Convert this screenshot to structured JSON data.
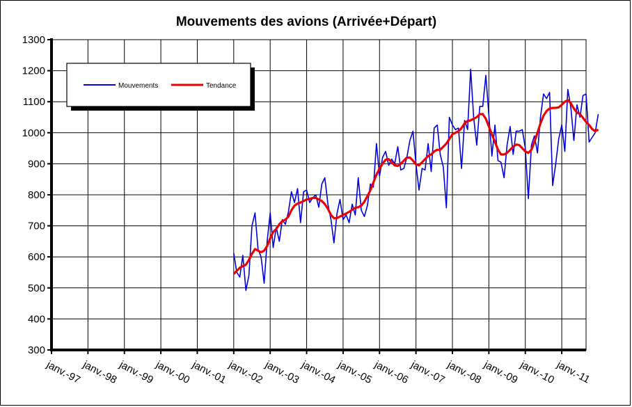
{
  "chart_data": {
    "type": "line",
    "title": "Mouvements des avions (Arrivée+Départ)",
    "xlabel": "",
    "ylabel": "",
    "ylim": [
      300,
      1300
    ],
    "yticks": [
      300,
      400,
      500,
      600,
      700,
      800,
      900,
      1000,
      1100,
      1200,
      1300
    ],
    "x_tick_labels": [
      "janv.-97",
      "janv.-98",
      "janv.-99",
      "janv.-00",
      "janv.-01",
      "janv.-02",
      "janv.-03",
      "janv.-04",
      "janv.-05",
      "janv.-06",
      "janv.-07",
      "janv.-08",
      "janv.-09",
      "janv.-10",
      "janv.-11"
    ],
    "x_start": "1997-01",
    "grid": true,
    "legend_position": "top-left",
    "colors": {
      "mouvements": "#0000dd",
      "tendance": "#ee0000"
    },
    "series": [
      {
        "name": "Mouvements",
        "x_start": "2002-01",
        "values": [
          612,
          550,
          535,
          605,
          492,
          540,
          700,
          742,
          625,
          600,
          515,
          650,
          742,
          630,
          695,
          650,
          720,
          705,
          745,
          810,
          775,
          820,
          710,
          810,
          815,
          775,
          790,
          800,
          760,
          835,
          855,
          770,
          720,
          645,
          740,
          785,
          720,
          735,
          710,
          770,
          735,
          855,
          750,
          730,
          765,
          835,
          825,
          965,
          860,
          920,
          940,
          895,
          915,
          900,
          955,
          880,
          885,
          920,
          975,
          1005,
          900,
          815,
          885,
          880,
          965,
          875,
          1015,
          1025,
          930,
          890,
          758,
          1050,
          1025,
          1010,
          1015,
          885,
          1040,
          1010,
          1205,
          1050,
          960,
          1085,
          1085,
          1185,
          1055,
          925,
          1025,
          910,
          905,
          855,
          960,
          1020,
          930,
          1005,
          1005,
          1010,
          950,
          788,
          960,
          990,
          935,
          1050,
          1125,
          1110,
          1130,
          830,
          900,
          980,
          1025,
          940,
          1140,
          1080,
          975,
          1090,
          1050,
          1120,
          1125,
          970,
          985,
          1000,
          1060
        ]
      },
      {
        "name": "Tendance",
        "x_start": "2002-01",
        "values": [
          545,
          555,
          565,
          570,
          575,
          590,
          610,
          625,
          620,
          615,
          620,
          635,
          660,
          680,
          690,
          705,
          715,
          720,
          730,
          750,
          765,
          772,
          775,
          780,
          785,
          787,
          790,
          790,
          785,
          780,
          770,
          755,
          735,
          725,
          725,
          730,
          735,
          740,
          745,
          752,
          758,
          760,
          765,
          778,
          795,
          815,
          840,
          865,
          885,
          900,
          913,
          915,
          905,
          895,
          893,
          900,
          910,
          920,
          920,
          910,
          898,
          895,
          905,
          915,
          925,
          930,
          940,
          945,
          945,
          955,
          965,
          980,
          995,
          1000,
          1005,
          1015,
          1030,
          1038,
          1040,
          1045,
          1050,
          1060,
          1060,
          1045,
          1020,
          995,
          970,
          945,
          930,
          930,
          935,
          945,
          955,
          962,
          960,
          950,
          940,
          935,
          945,
          970,
          1000,
          1030,
          1055,
          1070,
          1078,
          1080,
          1080,
          1082,
          1090,
          1100,
          1105,
          1095,
          1078,
          1065,
          1060,
          1048,
          1035,
          1025,
          1012,
          1005,
          1010
        ]
      }
    ]
  }
}
